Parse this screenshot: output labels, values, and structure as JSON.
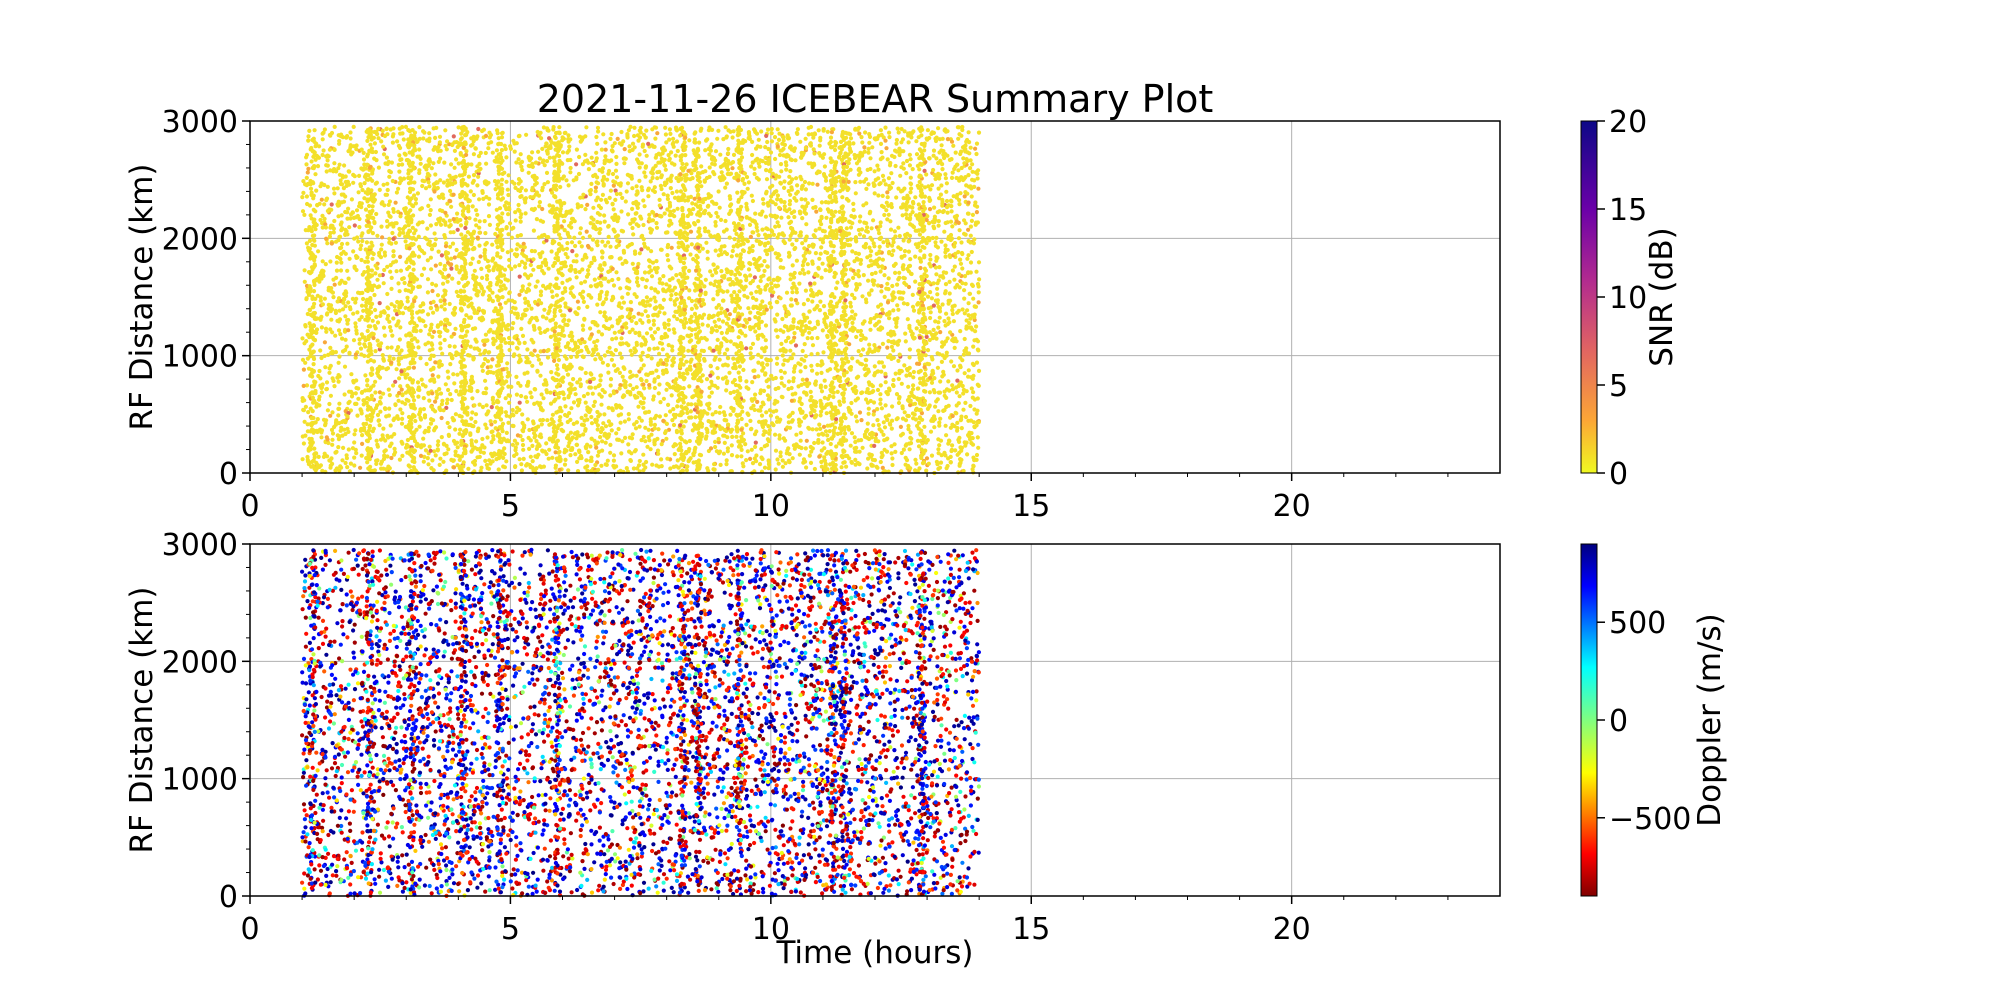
{
  "chart_data": [
    {
      "type": "scatter",
      "title": "2021-11-26 ICEBEAR Summary Plot",
      "xlabel": "",
      "ylabel": "RF Distance (km)",
      "xlim": [
        0,
        24
      ],
      "ylim": [
        0,
        3000
      ],
      "xticks": [
        "0",
        "5",
        "10",
        "15",
        "20"
      ],
      "yticks": [
        "0",
        "1000",
        "2000",
        "3000"
      ],
      "grid": true,
      "data_time_range_hours": [
        1.0,
        14.0
      ],
      "color_variable": "SNR",
      "colorbar": {
        "label": "SNR (dB)",
        "colormap": "plasma_r",
        "range": [
          0,
          20
        ],
        "ticks": [
          "0",
          "5",
          "10",
          "15",
          "20"
        ]
      },
      "dominant_color": "#f3e02a"
    },
    {
      "type": "scatter",
      "title": "",
      "xlabel": "Time (hours)",
      "ylabel": "RF Distance (km)",
      "xlim": [
        0,
        24
      ],
      "ylim": [
        0,
        3000
      ],
      "xticks": [
        "0",
        "5",
        "10",
        "15",
        "20"
      ],
      "yticks": [
        "0",
        "1000",
        "2000",
        "3000"
      ],
      "grid": true,
      "data_time_range_hours": [
        1.0,
        14.0
      ],
      "color_variable": "Doppler",
      "colorbar": {
        "label": "Doppler (m/s)",
        "colormap": "jet_r",
        "range": [
          -900,
          900
        ],
        "ticks": [
          "−500",
          "0",
          "500"
        ],
        "tick_values": [
          -500,
          0,
          500
        ]
      }
    }
  ]
}
